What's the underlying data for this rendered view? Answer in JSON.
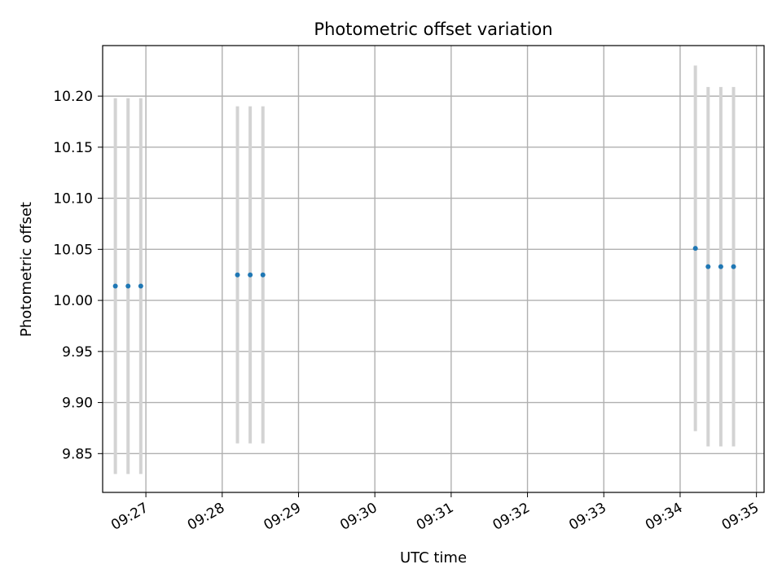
{
  "chart_data": {
    "type": "scatter",
    "title": "Photometric offset variation",
    "xlabel": "UTC time",
    "ylabel": "Photometric offset",
    "x_tick_labels": [
      "09:27",
      "09:28",
      "09:29",
      "09:30",
      "09:31",
      "09:32",
      "09:33",
      "09:34",
      "09:35"
    ],
    "y_tick_labels": [
      "9.85",
      "9.90",
      "9.95",
      "10.00",
      "10.05",
      "10.10",
      "10.15",
      "10.20"
    ],
    "y_ticks": [
      9.85,
      9.9,
      9.95,
      10.0,
      10.05,
      10.1,
      10.15,
      10.2
    ],
    "xlim": [
      "09:26:26",
      "09:35:06"
    ],
    "ylim": [
      9.812,
      10.2495
    ],
    "grid": true,
    "marker_color": "#1f77b4",
    "errorbar_color": "#d3d3d3",
    "points": [
      {
        "x": "09:26:36",
        "y": 10.014,
        "yerr": 0.184
      },
      {
        "x": "09:26:46",
        "y": 10.014,
        "yerr": 0.184
      },
      {
        "x": "09:26:56",
        "y": 10.014,
        "yerr": 0.184
      },
      {
        "x": "09:28:12",
        "y": 10.025,
        "yerr": 0.165
      },
      {
        "x": "09:28:22",
        "y": 10.025,
        "yerr": 0.165
      },
      {
        "x": "09:28:32",
        "y": 10.025,
        "yerr": 0.165
      },
      {
        "x": "09:34:12",
        "y": 10.051,
        "yerr": 0.179
      },
      {
        "x": "09:34:22",
        "y": 10.033,
        "yerr": 0.176
      },
      {
        "x": "09:34:32",
        "y": 10.033,
        "yerr": 0.176
      },
      {
        "x": "09:34:42",
        "y": 10.033,
        "yerr": 0.176
      }
    ]
  }
}
